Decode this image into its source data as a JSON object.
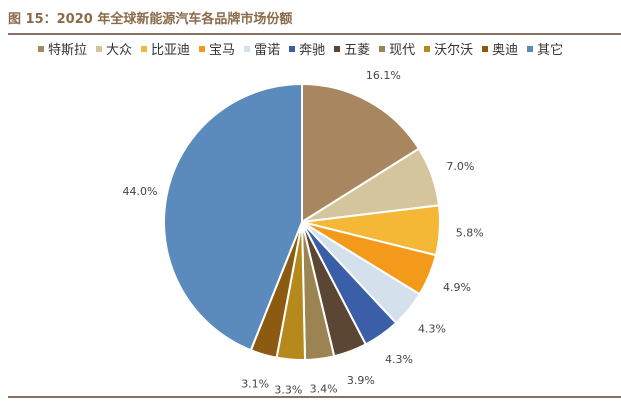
{
  "title": "图 15：2020 年全球新能源汽车各品牌市场份额",
  "chart_data": {
    "type": "pie",
    "title": "图 15：2020 年全球新能源汽车各品牌市场份额",
    "legend_position": "top",
    "start": "top, clockwise",
    "categories": [
      "特斯拉",
      "大众",
      "比亚迪",
      "宝马",
      "雷诺",
      "奔驰",
      "五菱",
      "现代",
      "沃尔沃",
      "奥迪",
      "其它"
    ],
    "values": [
      16.1,
      7.0,
      5.8,
      4.9,
      4.3,
      4.3,
      3.9,
      3.4,
      3.3,
      3.1,
      44.0
    ],
    "labels": [
      "16.1%",
      "7.0%",
      "5.8%",
      "4.9%",
      "4.3%",
      "4.3%",
      "3.9%",
      "3.4%",
      "3.3%",
      "3.1%",
      "44.0%"
    ],
    "colors": [
      "#a88660",
      "#d5c59c",
      "#f4b836",
      "#f39a1b",
      "#d4e0ec",
      "#3a5ea8",
      "#5a4632",
      "#9b8451",
      "#b5891b",
      "#8c5a10",
      "#5b8bbd"
    ]
  }
}
